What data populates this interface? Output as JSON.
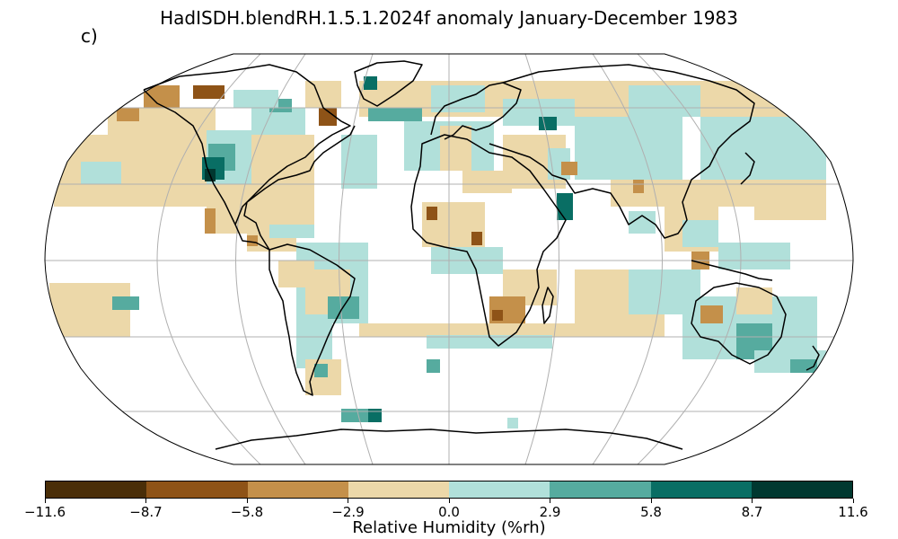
{
  "title": "HadISDH.blendRH.1.5.1.2024f anomaly January-December 1983",
  "panel_label": "c)",
  "colorbar": {
    "label": "Relative Humidity (%rh)",
    "ticks": [
      "−11.6",
      "−8.7",
      "−5.8",
      "−2.9",
      "0.0",
      "2.9",
      "5.8",
      "8.7",
      "11.6"
    ],
    "colors": [
      "#4a2e08",
      "#8e5317",
      "#c4904a",
      "#ecd8a9",
      "#b1e0da",
      "#56ab9f",
      "#096e64",
      "#003830"
    ]
  },
  "map": {
    "projection": "Robinson",
    "background": "#ffffff",
    "gridline_color": "#b0b0b0",
    "coastline_color": "#000000"
  }
}
